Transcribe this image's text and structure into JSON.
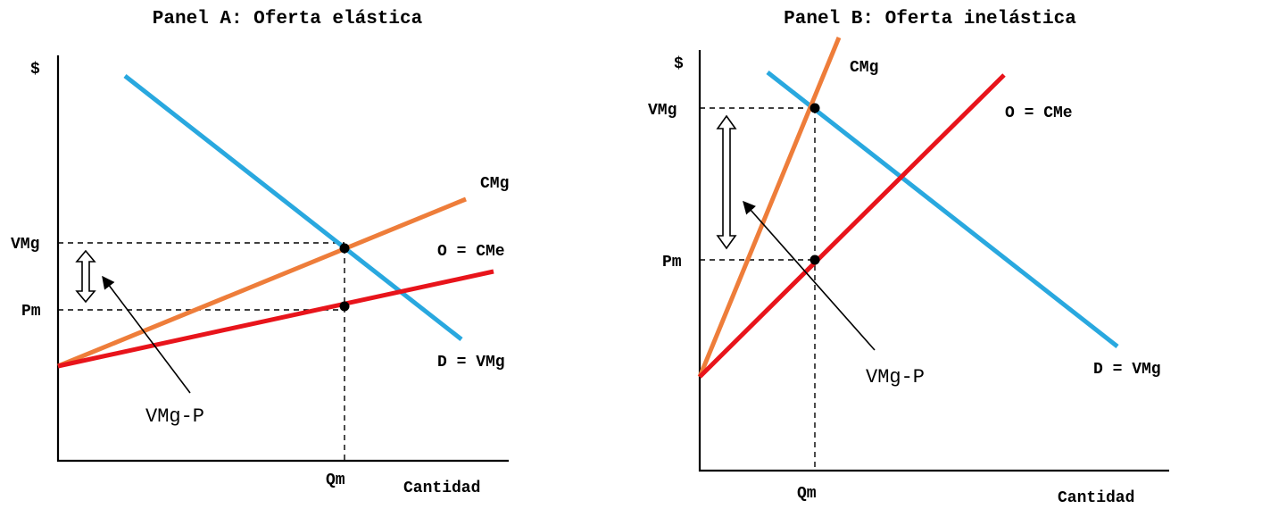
{
  "panel_a": {
    "title": "Panel A: Oferta elástica",
    "y_label": "$",
    "x_label": "Cantidad",
    "vmg_tick": "VMg",
    "pm_tick": "Pm",
    "qm_tick": "Qm",
    "cmg_label": "CMg",
    "supply_label": "O = CMe",
    "demand_label": "D = VMg",
    "gap_label": "VMg-P"
  },
  "panel_b": {
    "title": "Panel B: Oferta inelástica",
    "y_label": "$",
    "x_label": "Cantidad",
    "vmg_tick": "VMg",
    "pm_tick": "Pm",
    "qm_tick": "Qm",
    "cmg_label": "CMg",
    "supply_label": "O = CMe",
    "demand_label": "D = VMg",
    "gap_label": "VMg-P"
  },
  "colors": {
    "demand": "#29A8DF",
    "marginal_cost": "#EE7D3A",
    "supply": "#E8141B"
  }
}
